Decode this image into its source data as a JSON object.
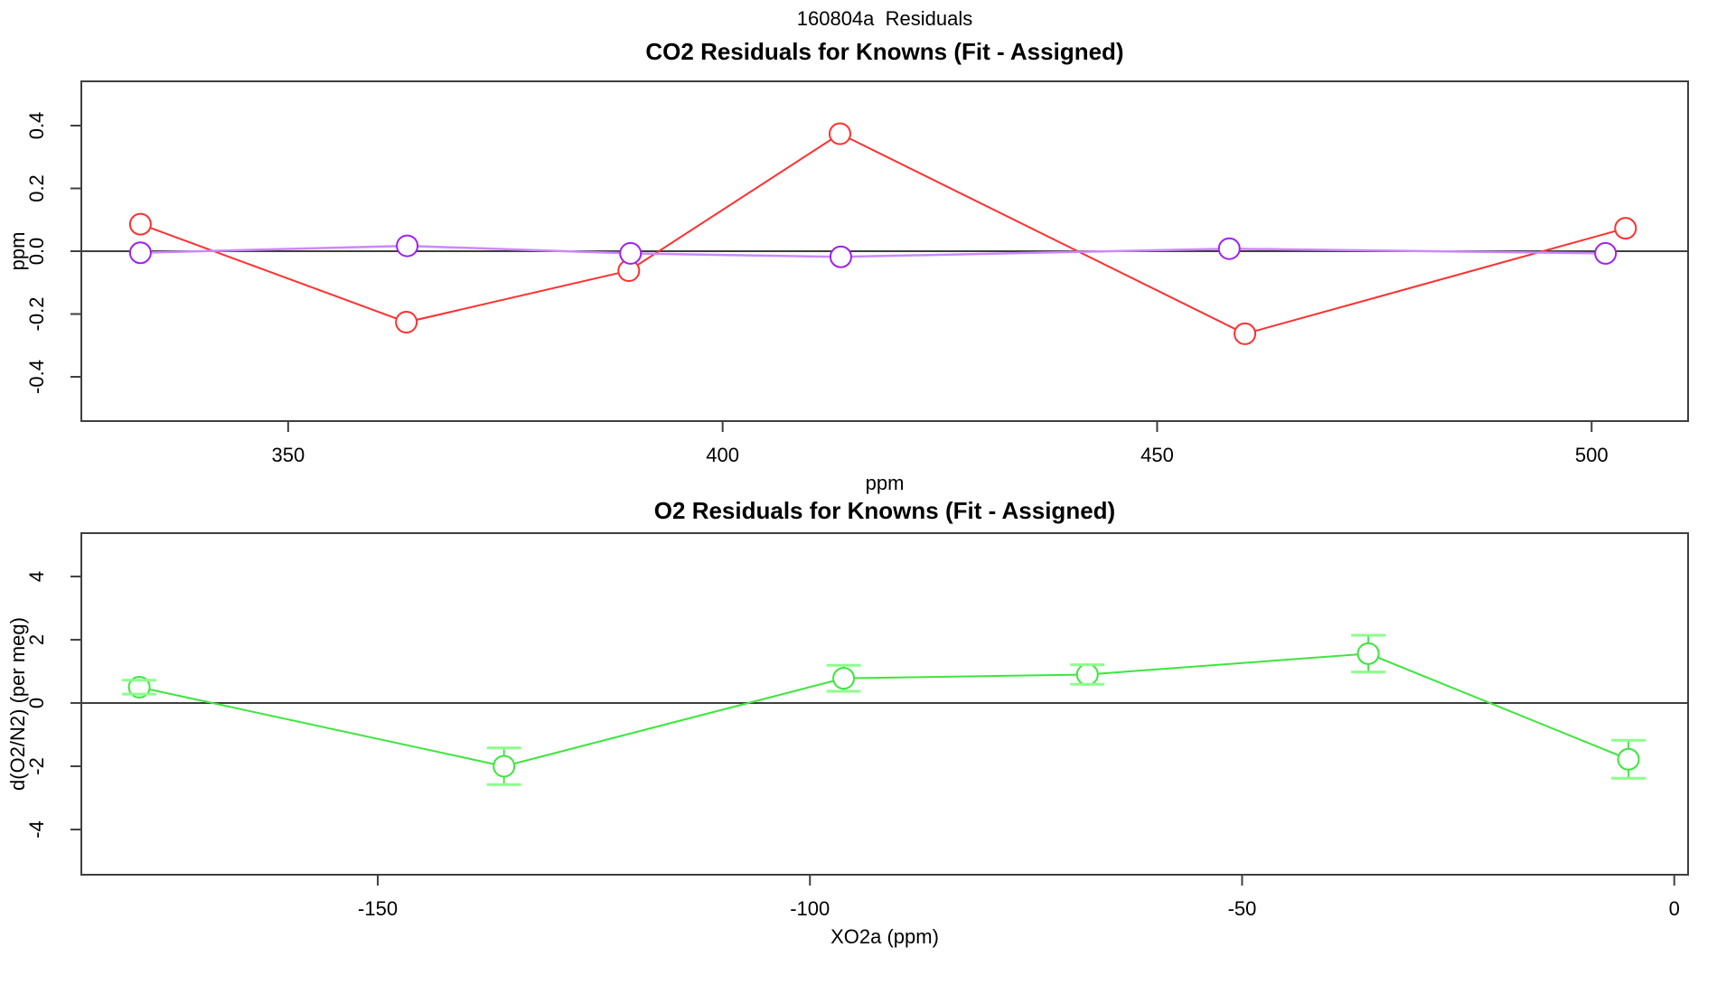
{
  "main_title": "160804a  Residuals",
  "colors": {
    "red": "#ff3030",
    "purple": "#a020f0",
    "purple_line": "#cc88ff",
    "green": "#3ce63c",
    "green_cap": "#8cff8c",
    "axis": "#3f3f3f",
    "zero_line": "#3f3f3f",
    "text": "#000000",
    "background": "#ffffff"
  },
  "chart_data": [
    {
      "id": "co2",
      "type": "line",
      "title": "CO2 Residuals for Knowns (Fit - Assigned)",
      "xlabel": "ppm",
      "ylabel": "ppm",
      "xlim": [
        326.2,
        511.1
      ],
      "ylim": [
        -0.541,
        0.541
      ],
      "xticks": [
        350,
        400,
        450,
        500
      ],
      "xtick_labels": [
        "350",
        "400",
        "450",
        "500"
      ],
      "yticks": [
        -0.4,
        -0.2,
        0.0,
        0.2,
        0.4
      ],
      "ytick_labels": [
        "-0.4",
        "-0.2",
        "0.0",
        "0.2",
        "0.4"
      ],
      "grid": false,
      "zero_line": true,
      "legend": "none",
      "series": [
        {
          "name": "co2-residual-red",
          "color_key": "red",
          "line_color_key": "red",
          "x": [
            333.0,
            363.6,
            389.2,
            413.5,
            460.1,
            503.9
          ],
          "y": [
            0.086,
            -0.226,
            -0.062,
            0.374,
            -0.263,
            0.073
          ]
        },
        {
          "name": "co2-residual-purple",
          "color_key": "purple",
          "line_color_key": "purple_line",
          "x": [
            333.0,
            363.7,
            389.4,
            413.6,
            458.3,
            501.6
          ],
          "y": [
            -0.005,
            0.017,
            -0.007,
            -0.018,
            0.008,
            -0.007
          ]
        }
      ]
    },
    {
      "id": "o2",
      "type": "line",
      "title": "O2 Residuals for Knowns (Fit - Assigned)",
      "xlabel": "XO2a (ppm)",
      "ylabel": "d(O2/N2) (per meg)",
      "xlim": [
        -184.3,
        1.6
      ],
      "ylim": [
        -5.43,
        5.37
      ],
      "xticks": [
        -150,
        -100,
        -50,
        0
      ],
      "xtick_labels": [
        "-150",
        "-100",
        "-50",
        "0"
      ],
      "yticks": [
        -4,
        -2,
        0,
        2,
        4
      ],
      "ytick_labels": [
        "-4",
        "-2",
        "0",
        "2",
        "4"
      ],
      "grid": false,
      "zero_line": true,
      "legend": "none",
      "series": [
        {
          "name": "o2-residual-green",
          "color_key": "green",
          "line_color_key": "green",
          "cap_color_key": "green_cap",
          "x": [
            -177.6,
            -135.4,
            -96.1,
            -67.9,
            -35.4,
            -5.3
          ],
          "y": [
            0.5,
            -2.0,
            0.78,
            0.9,
            1.56,
            -1.78
          ],
          "yerr": [
            0.22,
            0.58,
            0.41,
            0.31,
            0.58,
            0.6
          ]
        }
      ]
    }
  ]
}
